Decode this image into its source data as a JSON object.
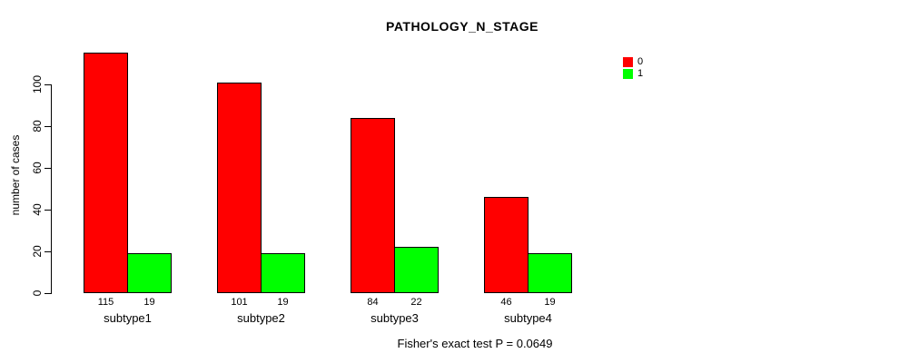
{
  "chart_data": {
    "type": "bar",
    "title": "PATHOLOGY_N_STAGE",
    "categories": [
      "subtype1",
      "subtype2",
      "subtype3",
      "subtype4"
    ],
    "series": [
      {
        "name": "0",
        "color": "#ff0000",
        "values": [
          115,
          101,
          84,
          46
        ]
      },
      {
        "name": "1",
        "color": "#00ff00",
        "values": [
          19,
          19,
          22,
          19
        ]
      }
    ],
    "xlabel": "",
    "ylabel": "number of cases",
    "yticks": [
      0,
      20,
      40,
      60,
      80,
      100
    ],
    "ylim": [
      0,
      115
    ],
    "grid": false,
    "legend_position": "top-right",
    "bar_value_labels": true,
    "annotation": "Fisher's exact test P = 0.0649"
  }
}
